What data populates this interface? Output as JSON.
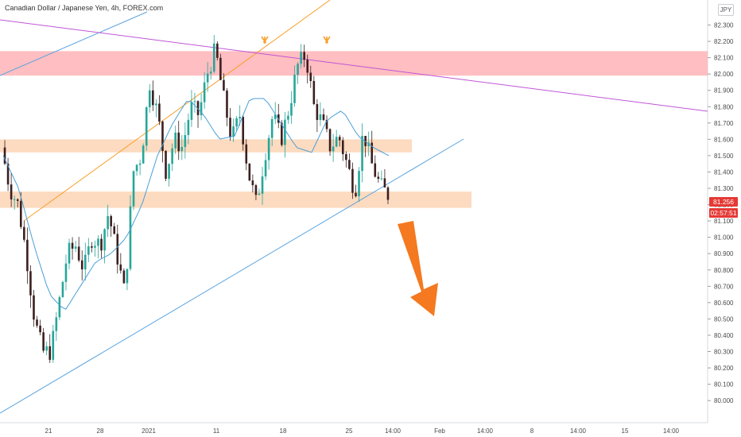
{
  "header": {
    "symbol_title": "Canadian Dollar / Japanese Yen, 4h, FOREX.com",
    "currency": "JPY"
  },
  "price_tags": {
    "last_price": "81.256",
    "countdown": "02:57:51"
  },
  "colors": {
    "candle_up": "#26a69a",
    "candle_down": "#3b1f1f",
    "ema": "#4a9fd8",
    "tag_red": "#e53935",
    "resistance_zone": "#ffb3b6",
    "support_zone": "#fbd5b5",
    "trend_blue": "#5aa4e0",
    "trend_orange": "#f7a02a",
    "trend_purple": "#c055d6",
    "arrow_orange": "#f47920"
  },
  "chart_data": {
    "type": "candlestick",
    "timeframe": "4h",
    "y_ticks": [
      "82.300",
      "82.200",
      "82.100",
      "82.000",
      "81.900",
      "81.800",
      "81.700",
      "81.600",
      "81.500",
      "81.400",
      "81.300",
      "81.200",
      "81.100",
      "81.000",
      "80.900",
      "80.800",
      "80.700",
      "80.600",
      "80.500",
      "80.400",
      "80.300",
      "80.200",
      "80.100",
      "80.000"
    ],
    "x_ticks": [
      "21",
      "28",
      "2021",
      "11",
      "18",
      "25",
      "14:00",
      "Feb",
      "14:00",
      "8",
      "14:00",
      "15",
      "14:00"
    ],
    "ylim": [
      79.96,
      82.42
    ],
    "close_path": [
      81.55,
      81.3,
      81.2,
      80.9,
      80.5,
      80.3,
      80.3,
      80.6,
      80.9,
      80.95,
      80.8,
      81.0,
      80.95,
      81.15,
      80.9,
      80.65,
      81.4,
      81.5,
      81.95,
      81.75,
      81.4,
      81.6,
      81.55,
      81.8,
      81.75,
      82.0,
      82.15,
      81.85,
      81.6,
      81.75,
      81.4,
      81.2,
      81.5,
      81.75,
      81.6,
      81.8,
      82.05,
      82.12,
      81.8,
      81.7,
      81.55,
      81.62,
      81.45,
      81.28,
      81.65,
      81.45,
      81.32,
      81.26
    ],
    "ema_path": [
      81.5,
      81.3,
      80.95,
      80.65,
      80.55,
      80.7,
      80.85,
      80.9,
      81.0,
      81.2,
      81.5,
      81.7,
      81.85,
      81.75,
      81.6,
      81.62,
      81.85,
      81.85,
      81.7,
      81.55,
      81.52,
      81.72,
      81.78,
      81.62,
      81.55,
      81.5
    ],
    "zones": [
      {
        "name": "resistance",
        "y_range": [
          81.99,
          82.14
        ]
      },
      {
        "name": "upper-support",
        "y_range": [
          81.52,
          81.6
        ]
      },
      {
        "name": "lower-support",
        "y_range": [
          81.18,
          81.28
        ]
      }
    ],
    "last_price": 81.256,
    "highs_marked": 2
  }
}
